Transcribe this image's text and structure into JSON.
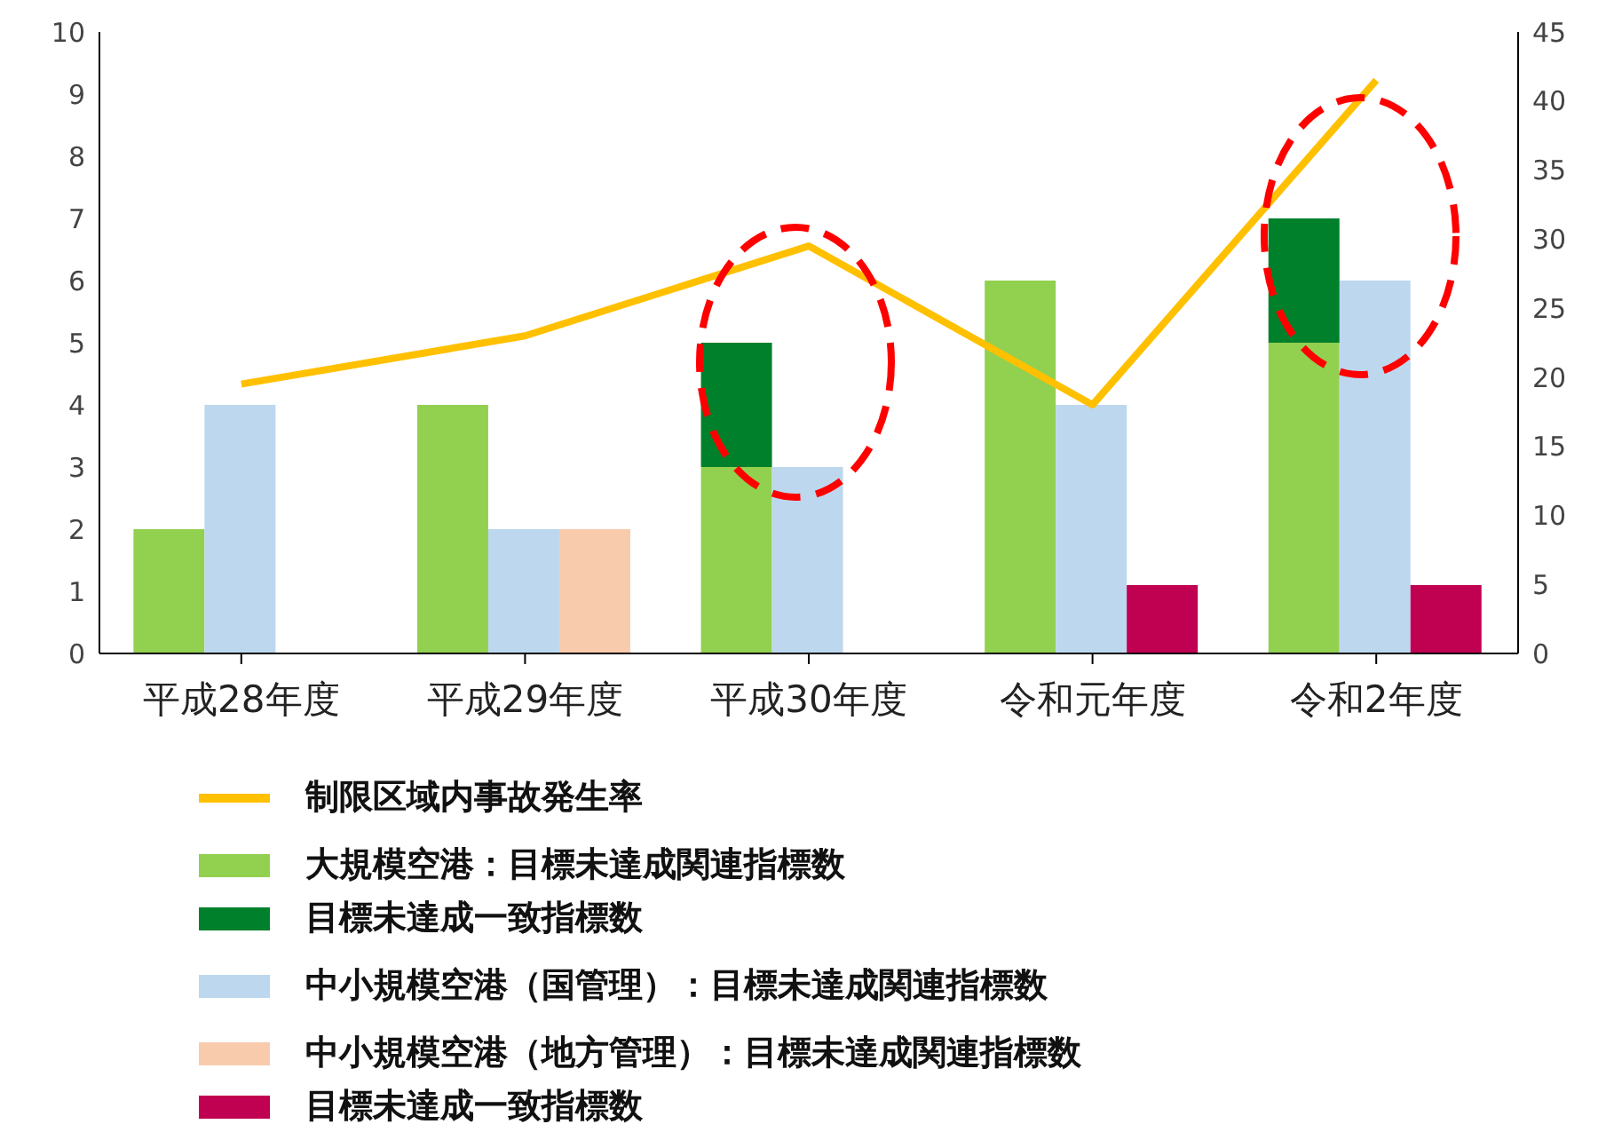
{
  "chart_data": {
    "type": "bar",
    "categories": [
      "平成28年度",
      "平成29年度",
      "平成30年度",
      "令和元年度",
      "令和2年度"
    ],
    "series": [
      {
        "name": "制限区域内事故発生率",
        "type": "line",
        "axis": "y2",
        "color": "#ffc000",
        "values": [
          19.5,
          23,
          29.5,
          18,
          41.5
        ]
      },
      {
        "name": "大規模空港：目標未達成関連指標数",
        "color": "#92d050",
        "values": [
          2,
          4,
          3,
          6,
          5
        ]
      },
      {
        "name": "目標未達成一致指標数",
        "color": "#00802b",
        "values": [
          null,
          null,
          2,
          null,
          2
        ],
        "base": [
          null,
          null,
          3,
          null,
          5
        ]
      },
      {
        "name": "中小規模空港（国管理）：目標未達成関連指標数",
        "color": "#bdd7ee",
        "values": [
          4,
          2,
          3,
          4,
          6
        ]
      },
      {
        "name": "中小規模空港（地方管理）：目標未達成関連指標数",
        "color": "#f8cbad",
        "values": [
          null,
          2,
          null,
          null,
          null
        ]
      },
      {
        "name": "目標未達成一致指標数",
        "color": "#c00050",
        "values": [
          null,
          null,
          null,
          1.1,
          1.1
        ],
        "base": [
          null,
          null,
          null,
          0,
          0
        ]
      }
    ],
    "ylim": [
      0,
      10
    ],
    "yticks": [
      0,
      1,
      2,
      3,
      4,
      5,
      6,
      7,
      8,
      9,
      10
    ],
    "y2lim": [
      0,
      45
    ],
    "y2ticks": [
      0,
      5,
      10,
      15,
      20,
      25,
      30,
      35,
      40,
      45
    ],
    "legend": "bottom",
    "line_style": "solid",
    "marker": "none"
  }
}
